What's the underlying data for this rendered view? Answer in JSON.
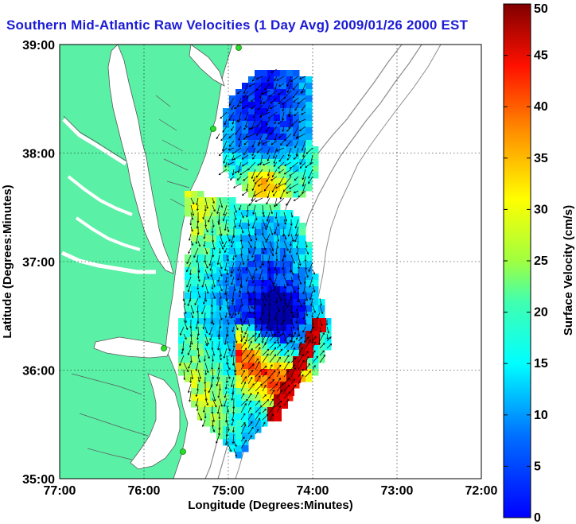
{
  "title": "Southern Mid-Atlantic Raw Velocities (1 Day Avg) 2009/01/26 2000 EST",
  "map": {
    "xlabel": "Longitude (Degrees:Minutes)",
    "ylabel": "Latitude (Degrees:Minutes)",
    "lon_ticks": [
      "77:00",
      "76:00",
      "75:00",
      "74:00",
      "73:00",
      "72:00"
    ],
    "lat_ticks": [
      "39:00",
      "38:00",
      "37:00",
      "36:00",
      "35:00"
    ],
    "lon_range": [
      -77,
      -72
    ],
    "lat_range": [
      35,
      39
    ],
    "grid": "dotted",
    "colors": {
      "land": "#5af0a6",
      "water": "#ffffff",
      "coast": "#777777",
      "bathymetry": "#8c8c8c",
      "station": "#2bdc2b",
      "arrow": "#000000",
      "title": "#1b1bd6"
    }
  },
  "colorbar": {
    "label": "Surface Velocity (cm/s)",
    "ticks": [
      "0",
      "5",
      "10",
      "15",
      "20",
      "25",
      "30",
      "35",
      "40",
      "45",
      "50"
    ],
    "min": 0,
    "max": 50,
    "colormap": "jet"
  }
}
